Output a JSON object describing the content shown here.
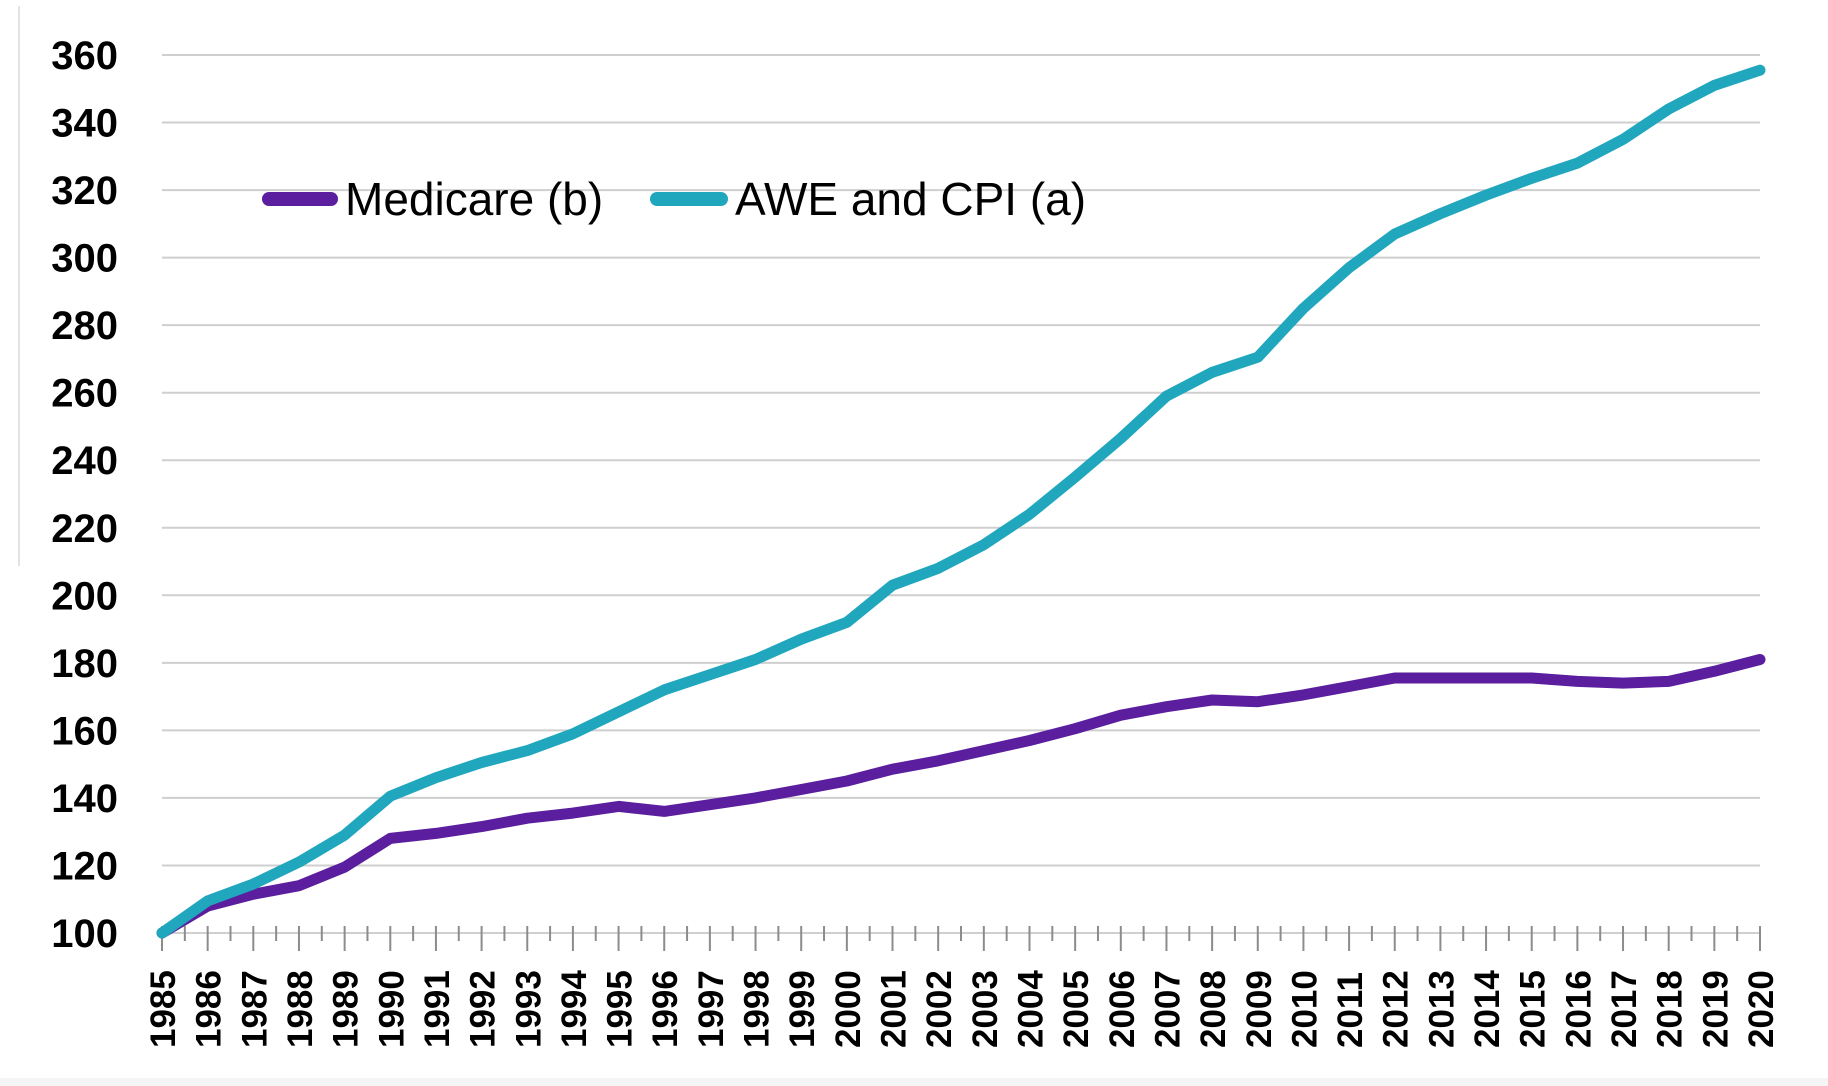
{
  "chart_data": {
    "type": "line",
    "title": "",
    "xlabel": "",
    "ylabel": "",
    "x": [
      1985,
      1986,
      1987,
      1988,
      1989,
      1990,
      1991,
      1992,
      1993,
      1994,
      1995,
      1996,
      1997,
      1998,
      1999,
      2000,
      2001,
      2002,
      2003,
      2004,
      2005,
      2006,
      2007,
      2008,
      2009,
      2010,
      2011,
      2012,
      2013,
      2014,
      2015,
      2016,
      2017,
      2018,
      2019,
      2020
    ],
    "series": [
      {
        "name": "Medicare (b)",
        "color": "#5a1e9e",
        "values": [
          100,
          108,
          111.5,
          114,
          119.5,
          128,
          129.5,
          131.5,
          134,
          135.5,
          137.5,
          136,
          138,
          140,
          142.5,
          145,
          148.5,
          151,
          154,
          157,
          160.5,
          164.5,
          167,
          169,
          168.5,
          170.5,
          173,
          175.5,
          175.5,
          175.5,
          175.5,
          174.5,
          174,
          174.5,
          177.5,
          181
        ]
      },
      {
        "name": "AWE and CPI (a)",
        "color": "#21a7bd",
        "values": [
          100,
          109.5,
          114.5,
          121,
          129,
          140.5,
          146,
          150.5,
          154,
          159,
          165.5,
          172,
          176.5,
          181,
          187,
          192,
          203,
          208,
          215,
          224,
          235,
          246.5,
          259,
          266,
          270.5,
          285,
          297,
          307,
          313,
          318.5,
          323.5,
          328,
          335,
          344,
          351,
          355.5
        ]
      }
    ],
    "ylim": [
      100,
      360
    ],
    "ytick_interval": 20,
    "y_tick_labels": [
      "100",
      "120",
      "140",
      "160",
      "180",
      "200",
      "220",
      "240",
      "260",
      "280",
      "300",
      "320",
      "340",
      "360"
    ],
    "x_tick_labels": [
      "1985",
      "1986",
      "1987",
      "1988",
      "1989",
      "1990",
      "1991",
      "1992",
      "1993",
      "1994",
      "1995",
      "1996",
      "1997",
      "1998",
      "1999",
      "2000",
      "2001",
      "2002",
      "2003",
      "2004",
      "2005",
      "2006",
      "2007",
      "2008",
      "2009",
      "2010",
      "2011",
      "2012",
      "2013",
      "2014",
      "2015",
      "2016",
      "2017",
      "2018",
      "2019",
      "2020"
    ],
    "minor_x_ticks_per_year": 2,
    "grid": "horizontal",
    "legend_position": "top-left-inside"
  },
  "legend": {
    "items": [
      {
        "label": "Medicare (b)",
        "color": "#5a1e9e"
      },
      {
        "label": "AWE and CPI (a)",
        "color": "#21a7bd"
      }
    ]
  },
  "styles": {
    "background": "#ffffff",
    "gridline_color": "#cfcfcf",
    "tick_color": "#8c8c8c",
    "axis_text_color": "#000000",
    "series_line_width": 11,
    "page_edge_strip_color": "#f5f5f5"
  }
}
